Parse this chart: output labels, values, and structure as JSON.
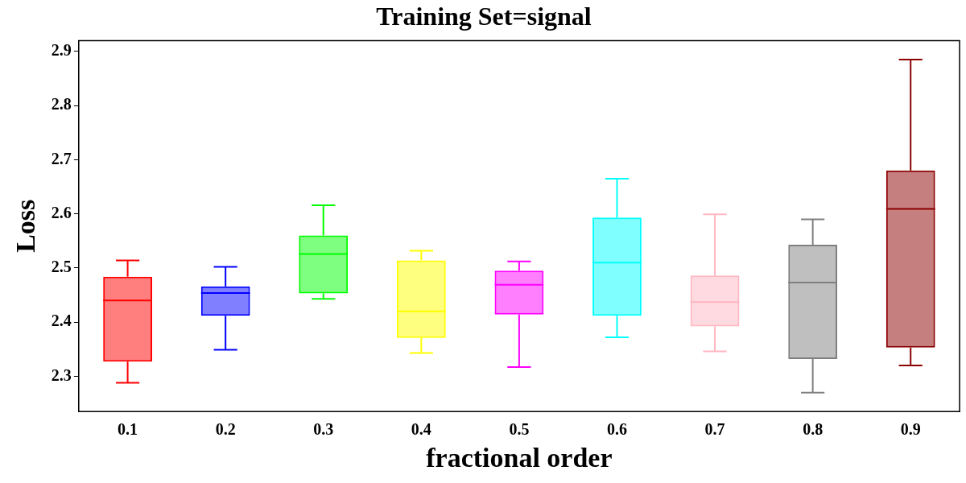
{
  "chart_data": {
    "type": "box",
    "title": "Training Set=signal",
    "xlabel": "fractional order",
    "ylabel": "Loss",
    "categories": [
      "0.1",
      "0.2",
      "0.3",
      "0.4",
      "0.5",
      "0.6",
      "0.7",
      "0.8",
      "0.9"
    ],
    "colors": [
      "#ff0000",
      "#0000ff",
      "#00ff00",
      "#ffff00",
      "#ff00ff",
      "#00ffff",
      "#ffb6c1",
      "#808080",
      "#8b0000"
    ],
    "boxes": [
      {
        "low": 2.288,
        "q1": 2.327,
        "median": 2.44,
        "q3": 2.484,
        "high": 2.514
      },
      {
        "low": 2.349,
        "q1": 2.412,
        "median": 2.454,
        "q3": 2.466,
        "high": 2.502
      },
      {
        "low": 2.443,
        "q1": 2.453,
        "median": 2.526,
        "q3": 2.56,
        "high": 2.616
      },
      {
        "low": 2.343,
        "q1": 2.371,
        "median": 2.42,
        "q3": 2.514,
        "high": 2.532
      },
      {
        "low": 2.317,
        "q1": 2.414,
        "median": 2.469,
        "q3": 2.495,
        "high": 2.512
      },
      {
        "low": 2.372,
        "q1": 2.412,
        "median": 2.51,
        "q3": 2.593,
        "high": 2.665
      },
      {
        "low": 2.346,
        "q1": 2.392,
        "median": 2.437,
        "q3": 2.486,
        "high": 2.599
      },
      {
        "low": 2.27,
        "q1": 2.332,
        "median": 2.473,
        "q3": 2.543,
        "high": 2.59
      },
      {
        "low": 2.32,
        "q1": 2.353,
        "median": 2.609,
        "q3": 2.68,
        "high": 2.885
      }
    ],
    "ylim": [
      2.235,
      2.92
    ],
    "yticks": [
      2.3,
      2.4,
      2.5,
      2.6,
      2.7,
      2.8,
      2.9
    ],
    "grid": false,
    "legend": false
  }
}
